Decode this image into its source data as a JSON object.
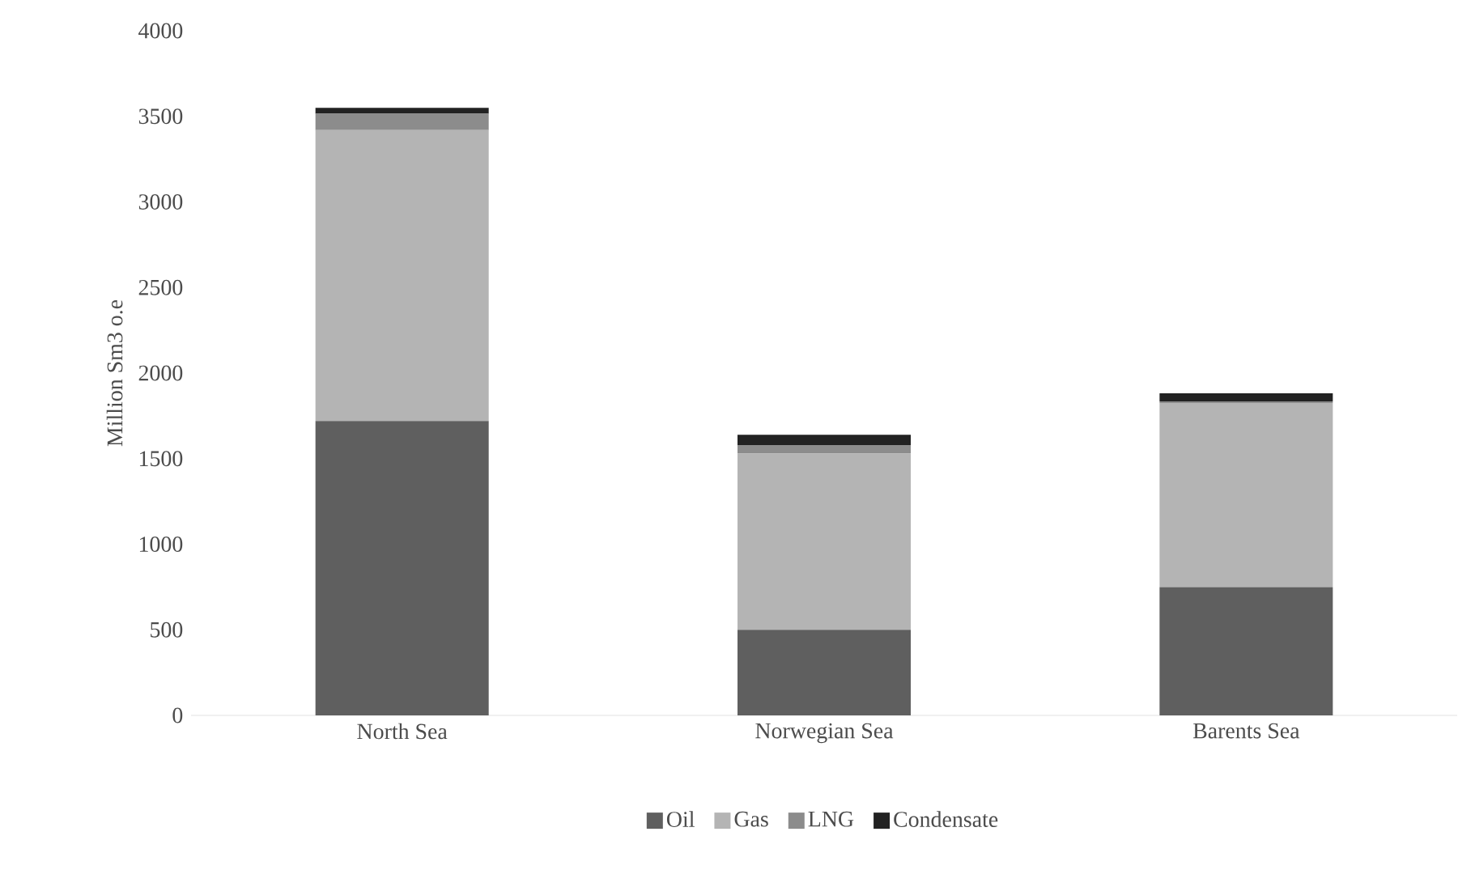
{
  "chart_data": {
    "type": "bar",
    "stacked": true,
    "ylabel": "Million Sm3 o.e",
    "categories": [
      "North Sea",
      "Norwegian Sea",
      "Barents Sea"
    ],
    "series": [
      {
        "name": "Oil",
        "color": "#5f5f5f",
        "values": [
          1720,
          500,
          750
        ]
      },
      {
        "name": "Gas",
        "color": "#b4b4b4",
        "values": [
          1700,
          1030,
          1075
        ]
      },
      {
        "name": "LNG",
        "color": "#8c8c8c",
        "values": [
          95,
          47,
          10
        ]
      },
      {
        "name": "Condensate",
        "color": "#222222",
        "values": [
          35,
          63,
          47
        ]
      }
    ],
    "ylim": [
      0,
      4000
    ],
    "yticks": [
      0,
      500,
      1000,
      1500,
      2000,
      2500,
      3000,
      3500,
      4000
    ],
    "legend": "bottom"
  }
}
